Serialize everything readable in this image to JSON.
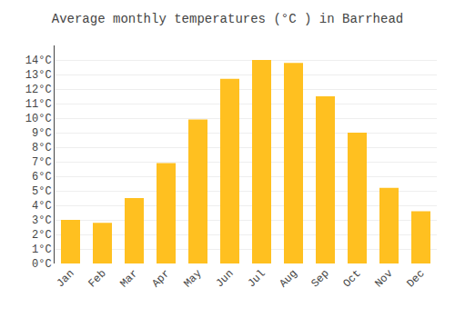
{
  "chart_data": {
    "type": "bar",
    "title": "Average monthly temperatures (°C ) in Barrhead",
    "categories": [
      "Jan",
      "Feb",
      "Mar",
      "Apr",
      "May",
      "Jun",
      "Jul",
      "Aug",
      "Sep",
      "Oct",
      "Nov",
      "Dec"
    ],
    "values": [
      3.0,
      2.8,
      4.5,
      6.9,
      9.9,
      12.7,
      14.0,
      13.8,
      11.5,
      9.0,
      5.2,
      3.6
    ],
    "color": "#FFC020",
    "ylim": [
      0,
      15
    ],
    "yticks": [
      {
        "value": 0,
        "label": "0°C"
      },
      {
        "value": 1,
        "label": "1°C"
      },
      {
        "value": 2,
        "label": "2°C"
      },
      {
        "value": 3,
        "label": "3°C"
      },
      {
        "value": 4,
        "label": "4°C"
      },
      {
        "value": 5,
        "label": "5°C"
      },
      {
        "value": 6,
        "label": "6°C"
      },
      {
        "value": 7,
        "label": "7°C"
      },
      {
        "value": 8,
        "label": "8°C"
      },
      {
        "value": 9,
        "label": "9°C"
      },
      {
        "value": 10,
        "label": "10°C"
      },
      {
        "value": 11,
        "label": "11°C"
      },
      {
        "value": 12,
        "label": "12°C"
      },
      {
        "value": 13,
        "label": "13°C"
      },
      {
        "value": 14,
        "label": "14°C"
      }
    ],
    "grid": true
  }
}
